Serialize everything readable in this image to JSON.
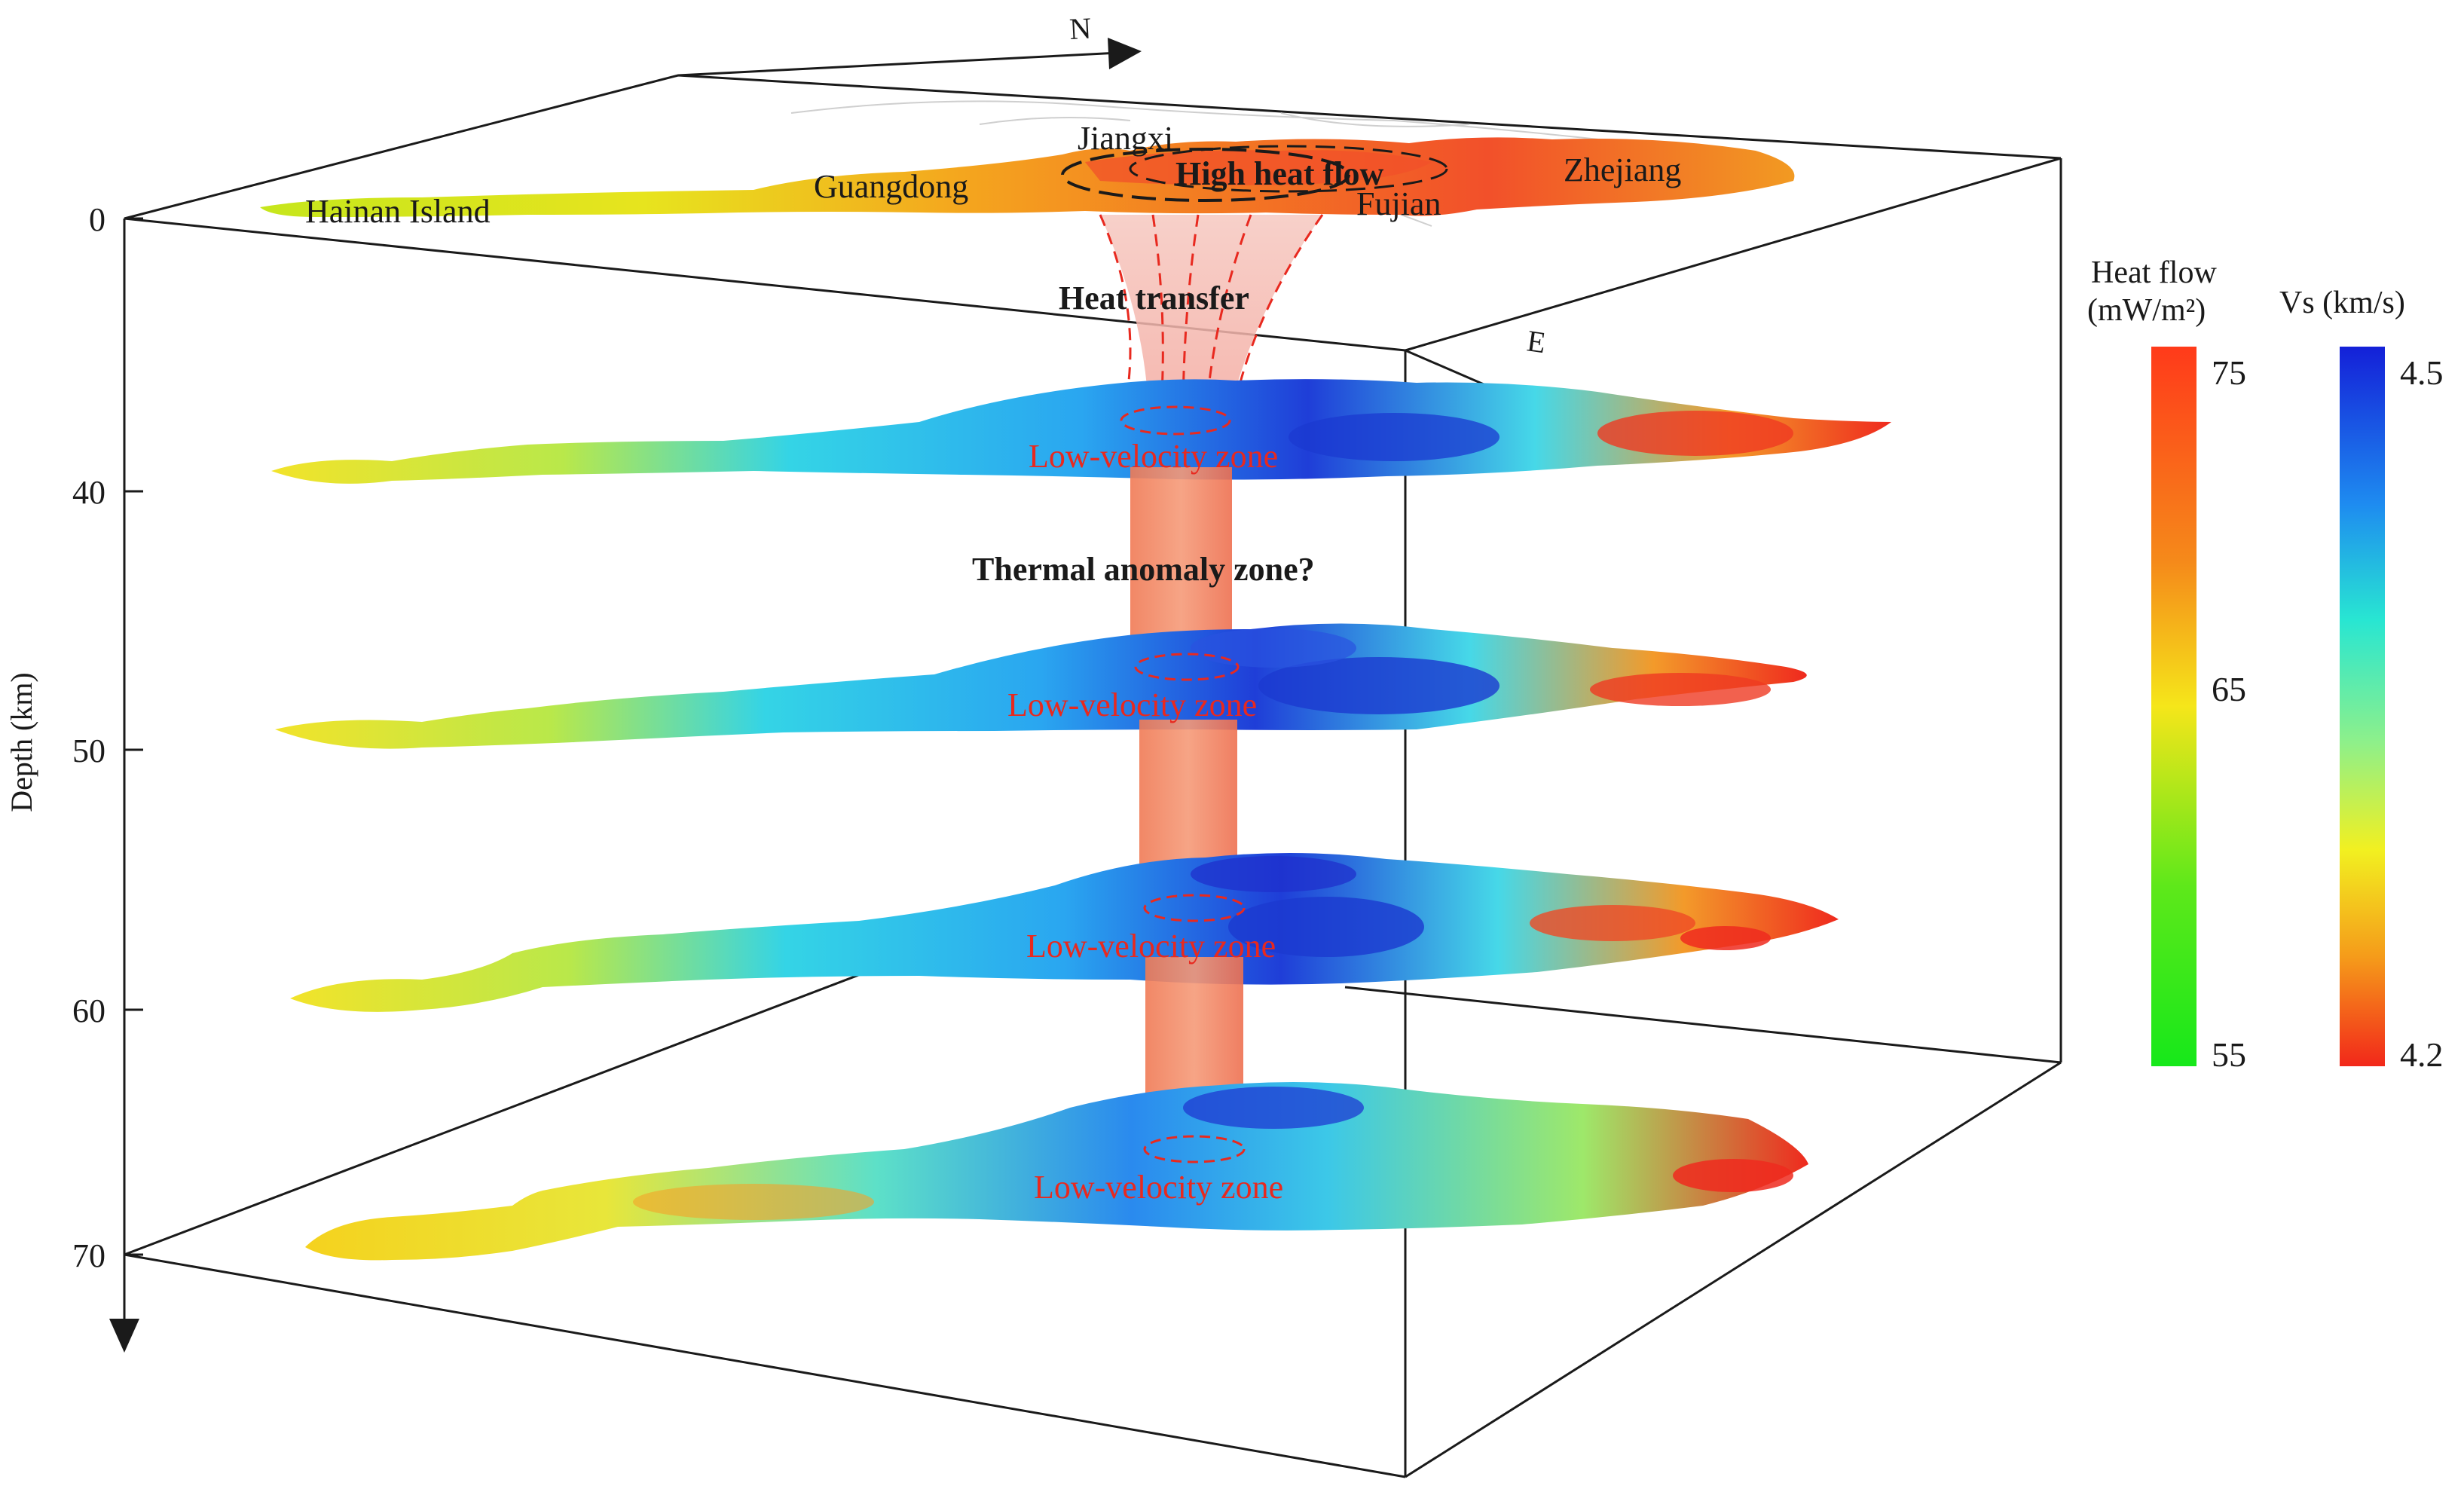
{
  "axes": {
    "north_label": "N",
    "east_label": "E",
    "depth_label": "Depth (km)",
    "depth_ticks": [
      "0",
      "40",
      "50",
      "60",
      "70"
    ]
  },
  "surface": {
    "regions": [
      "Hainan Island",
      "Guangdong",
      "Jiangxi",
      "Fujian",
      "Zhejiang"
    ],
    "high_heat_flow_label": "High heat flow",
    "heat_transfer_label": "Heat transfer"
  },
  "layers": {
    "zone_label": "Low-velocity zone",
    "thermal_anomaly_label": "Thermal anomaly zone?",
    "depths_km": [
      40,
      50,
      60,
      70
    ]
  },
  "legend": {
    "heat_flow": {
      "title_line1": "Heat flow",
      "title_line2": "(mW/m²)",
      "ticks": [
        "75",
        "65",
        "55"
      ],
      "colors": [
        "#ff3a1a",
        "#f58a1a",
        "#f5e61a",
        "#5ee81a",
        "#16e81a"
      ]
    },
    "vs": {
      "title": "Vs (km/s)",
      "ticks": [
        "4.5",
        "4.2"
      ],
      "colors": [
        "#1420d8",
        "#1e8cf0",
        "#28e6d2",
        "#8ef08a",
        "#f2f020",
        "#f59a1a",
        "#f2281a"
      ]
    }
  }
}
